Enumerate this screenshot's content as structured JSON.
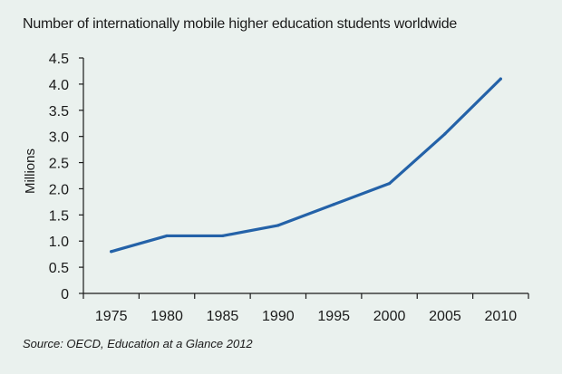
{
  "chart_data": {
    "type": "line",
    "title": "Number of internationally mobile higher education students worldwide",
    "xlabel": "",
    "ylabel": "Millions",
    "categories": [
      "1975",
      "1980",
      "1985",
      "1990",
      "1995",
      "2000",
      "2005",
      "2010"
    ],
    "x": [
      1975,
      1980,
      1985,
      1990,
      1995,
      2000,
      2005,
      2010
    ],
    "series": [
      {
        "values": [
          0.8,
          1.1,
          1.1,
          1.3,
          1.7,
          2.1,
          3.05,
          4.1
        ]
      }
    ],
    "ylim": [
      0,
      4.5
    ],
    "yticks": [
      "0",
      "0.5",
      "1.0",
      "1.5",
      "2.0",
      "2.5",
      "3.0",
      "3.5",
      "4.0",
      "4.5"
    ],
    "grid": false,
    "legend": "none",
    "colors": {
      "background": "#eaf1ee",
      "line": "#2462a8",
      "axis": "#1a1a1a"
    }
  },
  "source": {
    "prefix": "Source: OECD, ",
    "publication": "Education at a Glance 2012"
  }
}
